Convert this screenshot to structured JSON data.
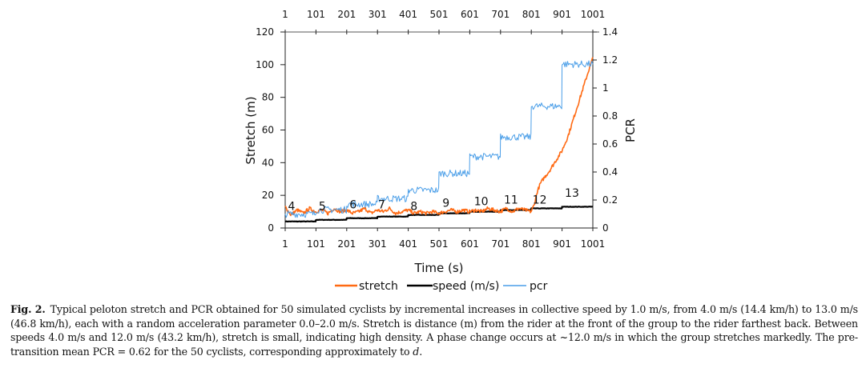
{
  "chart_data": {
    "type": "line",
    "title": "",
    "xlabel": "Time (s)",
    "ylabel_left": "Stretch (m)",
    "ylabel_right": "PCR",
    "xlim": [
      1,
      1001
    ],
    "ylim_left": [
      0,
      120
    ],
    "ylim_right": [
      0,
      1.4
    ],
    "x_ticks": [
      "1",
      "101",
      "201",
      "301",
      "401",
      "501",
      "601",
      "701",
      "801",
      "901",
      "1001"
    ],
    "x_ticks_top": [
      "1",
      "101",
      "201",
      "301",
      "401",
      "501",
      "601",
      "701",
      "801",
      "901",
      "1001"
    ],
    "y_ticks_left": [
      "0",
      "20",
      "40",
      "60",
      "80",
      "100",
      "120"
    ],
    "y_ticks_right": [
      "0",
      "0.2",
      "0.4",
      "0.6",
      "0.8",
      "1",
      "1.2",
      "1.4"
    ],
    "grid": false,
    "legend_position": "bottom",
    "legend": [
      {
        "name": "stretch",
        "color": "#ff6a13"
      },
      {
        "name": "speed (m/s)",
        "color": "#000000"
      },
      {
        "name": "pcr",
        "color": "#4a9ee8"
      }
    ],
    "speed_annotations": [
      {
        "label": "4",
        "x": 10,
        "y": 11
      },
      {
        "label": "5",
        "x": 110,
        "y": 11
      },
      {
        "label": "6",
        "x": 210,
        "y": 12
      },
      {
        "label": "7",
        "x": 303,
        "y": 12
      },
      {
        "label": "8",
        "x": 408,
        "y": 11
      },
      {
        "label": "9",
        "x": 512,
        "y": 13
      },
      {
        "label": "10",
        "x": 615,
        "y": 14
      },
      {
        "label": "11",
        "x": 712,
        "y": 15
      },
      {
        "label": "12",
        "x": 805,
        "y": 15
      },
      {
        "label": "13",
        "x": 910,
        "y": 19
      }
    ],
    "series": [
      {
        "name": "speed (m/s)",
        "axis": "left",
        "color": "#000000",
        "step_x": [
          1,
          101,
          201,
          301,
          401,
          501,
          601,
          701,
          801,
          901,
          1001
        ],
        "values": [
          4,
          5,
          6,
          7,
          8,
          9,
          10,
          11,
          12,
          13,
          13
        ]
      },
      {
        "name": "stretch",
        "axis": "left",
        "color": "#ff6a13",
        "x": [
          1,
          20,
          40,
          60,
          80,
          100,
          120,
          140,
          160,
          180,
          200,
          220,
          240,
          260,
          280,
          300,
          320,
          340,
          360,
          380,
          400,
          420,
          440,
          460,
          480,
          500,
          520,
          540,
          560,
          580,
          600,
          620,
          640,
          660,
          680,
          700,
          720,
          740,
          760,
          780,
          800,
          810,
          820,
          830,
          840,
          860,
          880,
          900,
          920,
          940,
          960,
          980,
          990,
          1001
        ],
        "values": [
          13,
          8,
          11,
          9,
          12,
          10,
          11,
          9,
          12,
          10,
          11,
          9,
          10,
          12,
          9,
          11,
          10,
          12,
          9,
          10,
          11,
          9,
          10,
          9,
          10,
          9,
          10,
          11,
          10,
          11,
          10,
          11,
          10,
          12,
          11,
          10,
          12,
          10,
          12,
          11,
          10,
          14,
          22,
          27,
          30,
          35,
          41,
          47,
          56,
          68,
          80,
          92,
          98,
          104
        ]
      },
      {
        "name": "pcr",
        "axis": "right",
        "color": "#4a9ee8",
        "step_x": [
          1,
          101,
          201,
          301,
          401,
          501,
          601,
          701,
          801,
          901,
          1001
        ],
        "values": [
          0.1,
          0.13,
          0.17,
          0.21,
          0.27,
          0.39,
          0.51,
          0.65,
          0.87,
          1.17,
          1.17
        ]
      }
    ]
  },
  "caption": {
    "label": "Fig. 2.",
    "text_part1": "Typical peloton stretch and PCR obtained for 50 simulated cyclists by incremental increases in collective speed by 1.0 m/s, from 4.0 m/s (14.4 km/h) to 13.0 m/s (46.8 km/h), each with a random acceleration parameter 0.0–2.0 m/s. Stretch is distance (m) from the rider at the front of the group to the rider farthest back. Between speeds 4.0 m/s and 12.0 m/s (43.2 km/h), stretch is small, indicating high density. A phase change occurs at ~12.0 m/s in which the group stretches markedly. The pre-transition mean PCR = 0.62 for the 50 cyclists, corresponding approximately to ",
    "italic_term": "d",
    "text_end": "."
  }
}
